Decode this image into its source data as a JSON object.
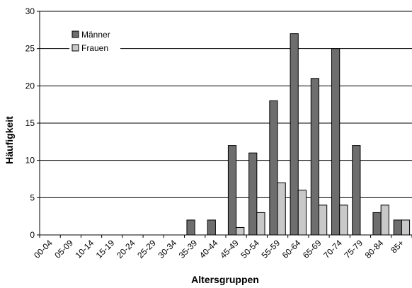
{
  "chart_data": {
    "type": "bar",
    "xlabel": "Altersgruppen",
    "ylabel": "Häufigkeit",
    "ylim": [
      0,
      30
    ],
    "yticks": [
      0,
      5,
      10,
      15,
      20,
      25,
      30
    ],
    "grid": true,
    "legend": "top-left",
    "categories": [
      "00-04",
      "05-09",
      "10-14",
      "15-19",
      "20-24",
      "25-29",
      "30-34",
      "35-39",
      "40-44",
      "45-49",
      "50-54",
      "55-59",
      "60-64",
      "65-69",
      "70-74",
      "75-79",
      "80-84",
      "85+"
    ],
    "series": [
      {
        "name": "Männer",
        "color": "#6e6e6e",
        "values": [
          0,
          0,
          0,
          0,
          0,
          0,
          0,
          2,
          2,
          12,
          11,
          18,
          27,
          21,
          25,
          12,
          3,
          2
        ]
      },
      {
        "name": "Frauen",
        "color": "#c8c8c8",
        "values": [
          0,
          0,
          0,
          0,
          0,
          0,
          0,
          0,
          0,
          1,
          3,
          7,
          6,
          4,
          4,
          0,
          4,
          2
        ]
      }
    ]
  }
}
